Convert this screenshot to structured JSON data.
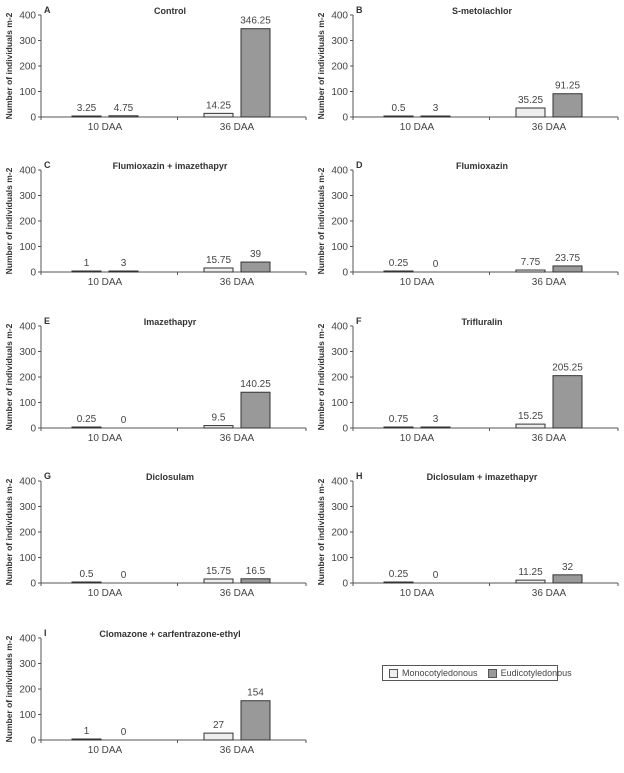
{
  "chart_data": [
    {
      "panel_letter": "A",
      "type": "bar",
      "title": "Control",
      "categories": [
        "10 DAA",
        "36 DAA"
      ],
      "series": [
        {
          "name": "Monocotyledonous",
          "values": [
            3.25,
            14.25
          ],
          "labels": [
            "3.25",
            "14.25"
          ]
        },
        {
          "name": "Eudicotyledonous",
          "values": [
            4.75,
            346.25
          ],
          "labels": [
            "4.75",
            "346.25"
          ]
        }
      ],
      "xlabel": "",
      "ylabel": "Number of individuals m-2",
      "ylim": [
        0,
        400
      ],
      "yticks": [
        "0",
        "100",
        "200",
        "300",
        "400"
      ]
    },
    {
      "panel_letter": "B",
      "type": "bar",
      "title": "S-metolachlor",
      "categories": [
        "10 DAA",
        "36 DAA"
      ],
      "series": [
        {
          "name": "Monocotyledonous",
          "values": [
            0.5,
            35.25
          ],
          "labels": [
            "0.5",
            "35.25"
          ]
        },
        {
          "name": "Eudicotyledonous",
          "values": [
            3,
            91.25
          ],
          "labels": [
            "3",
            "91.25"
          ]
        }
      ],
      "xlabel": "",
      "ylabel": "Number of individuals m-2",
      "ylim": [
        0,
        400
      ],
      "yticks": [
        "0",
        "100",
        "200",
        "300",
        "400"
      ]
    },
    {
      "panel_letter": "C",
      "type": "bar",
      "title": "Flumioxazin + imazethapyr",
      "categories": [
        "10 DAA",
        "36 DAA"
      ],
      "series": [
        {
          "name": "Monocotyledonous",
          "values": [
            1,
            15.75
          ],
          "labels": [
            "1",
            "15.75"
          ]
        },
        {
          "name": "Eudicotyledonous",
          "values": [
            3,
            39
          ],
          "labels": [
            "3",
            "39"
          ]
        }
      ],
      "xlabel": "",
      "ylabel": "Number of individuals m-2",
      "ylim": [
        0,
        400
      ],
      "yticks": [
        "0",
        "100",
        "200",
        "300",
        "400"
      ]
    },
    {
      "panel_letter": "D",
      "type": "bar",
      "title": "Flumioxazin",
      "categories": [
        "10 DAA",
        "36 DAA"
      ],
      "series": [
        {
          "name": "Monocotyledonous",
          "values": [
            0.25,
            7.75
          ],
          "labels": [
            "0.25",
            "7.75"
          ]
        },
        {
          "name": "Eudicotyledonous",
          "values": [
            0,
            23.75
          ],
          "labels": [
            "0",
            "23.75"
          ]
        }
      ],
      "xlabel": "",
      "ylabel": "Number of individuals m-2",
      "ylim": [
        0,
        400
      ],
      "yticks": [
        "0",
        "100",
        "200",
        "300",
        "400"
      ]
    },
    {
      "panel_letter": "E",
      "type": "bar",
      "title": "Imazethapyr",
      "categories": [
        "10 DAA",
        "36 DAA"
      ],
      "series": [
        {
          "name": "Monocotyledonous",
          "values": [
            0.25,
            9.5
          ],
          "labels": [
            "0.25",
            "9.5"
          ]
        },
        {
          "name": "Eudicotyledonous",
          "values": [
            0,
            140.25
          ],
          "labels": [
            "0",
            "140.25"
          ]
        }
      ],
      "xlabel": "",
      "ylabel": "Number of individuals m-2",
      "ylim": [
        0,
        400
      ],
      "yticks": [
        "0",
        "100",
        "200",
        "300",
        "400"
      ]
    },
    {
      "panel_letter": "F",
      "type": "bar",
      "title": "Trifluralin",
      "categories": [
        "10 DAA",
        "36 DAA"
      ],
      "series": [
        {
          "name": "Monocotyledonous",
          "values": [
            0.75,
            15.25
          ],
          "labels": [
            "0.75",
            "15.25"
          ]
        },
        {
          "name": "Eudicotyledonous",
          "values": [
            3,
            205.25
          ],
          "labels": [
            "3",
            "205.25"
          ]
        }
      ],
      "xlabel": "",
      "ylabel": "Number of individuals m-2",
      "ylim": [
        0,
        400
      ],
      "yticks": [
        "0",
        "100",
        "200",
        "300",
        "400"
      ]
    },
    {
      "panel_letter": "G",
      "type": "bar",
      "title": "Diclosulam",
      "categories": [
        "10 DAA",
        "36 DAA"
      ],
      "series": [
        {
          "name": "Monocotyledonous",
          "values": [
            0.5,
            15.75
          ],
          "labels": [
            "0.5",
            "15.75"
          ]
        },
        {
          "name": "Eudicotyledonous",
          "values": [
            0,
            16.5
          ],
          "labels": [
            "0",
            "16.5"
          ]
        }
      ],
      "xlabel": "",
      "ylabel": "Number of individuals m-2",
      "ylim": [
        0,
        400
      ],
      "yticks": [
        "0",
        "100",
        "200",
        "300",
        "400"
      ]
    },
    {
      "panel_letter": "H",
      "type": "bar",
      "title": "Diclosulam + imazethapyr",
      "categories": [
        "10 DAA",
        "36 DAA"
      ],
      "series": [
        {
          "name": "Monocotyledonous",
          "values": [
            0.25,
            11.25
          ],
          "labels": [
            "0.25",
            "11.25"
          ]
        },
        {
          "name": "Eudicotyledonous",
          "values": [
            0,
            32
          ],
          "labels": [
            "0",
            "32"
          ]
        }
      ],
      "xlabel": "",
      "ylabel": "Number of individuals m-2",
      "ylim": [
        0,
        400
      ],
      "yticks": [
        "0",
        "100",
        "200",
        "300",
        "400"
      ]
    },
    {
      "panel_letter": "I",
      "type": "bar",
      "title": "Clomazone + carfentrazone-ethyl",
      "categories": [
        "10 DAA",
        "36 DAA"
      ],
      "series": [
        {
          "name": "Monocotyledonous",
          "values": [
            1,
            27
          ],
          "labels": [
            "1",
            "27"
          ]
        },
        {
          "name": "Eudicotyledonous",
          "values": [
            0,
            154
          ],
          "labels": [
            "0",
            "154"
          ]
        }
      ],
      "xlabel": "",
      "ylabel": "Number of individuals m-2",
      "ylim": [
        0,
        400
      ],
      "yticks": [
        "0",
        "100",
        "200",
        "300",
        "400"
      ]
    }
  ],
  "legend": {
    "placement": "bottom-right",
    "items": [
      {
        "label": "Monocotyledonous",
        "color": "#eeeeee"
      },
      {
        "label": "Eudicotyledonous",
        "color": "#999999"
      }
    ]
  },
  "colors": {
    "monocot": "#eeeeee",
    "eudicot": "#999999",
    "axis": "#555555",
    "text": "#333333"
  }
}
